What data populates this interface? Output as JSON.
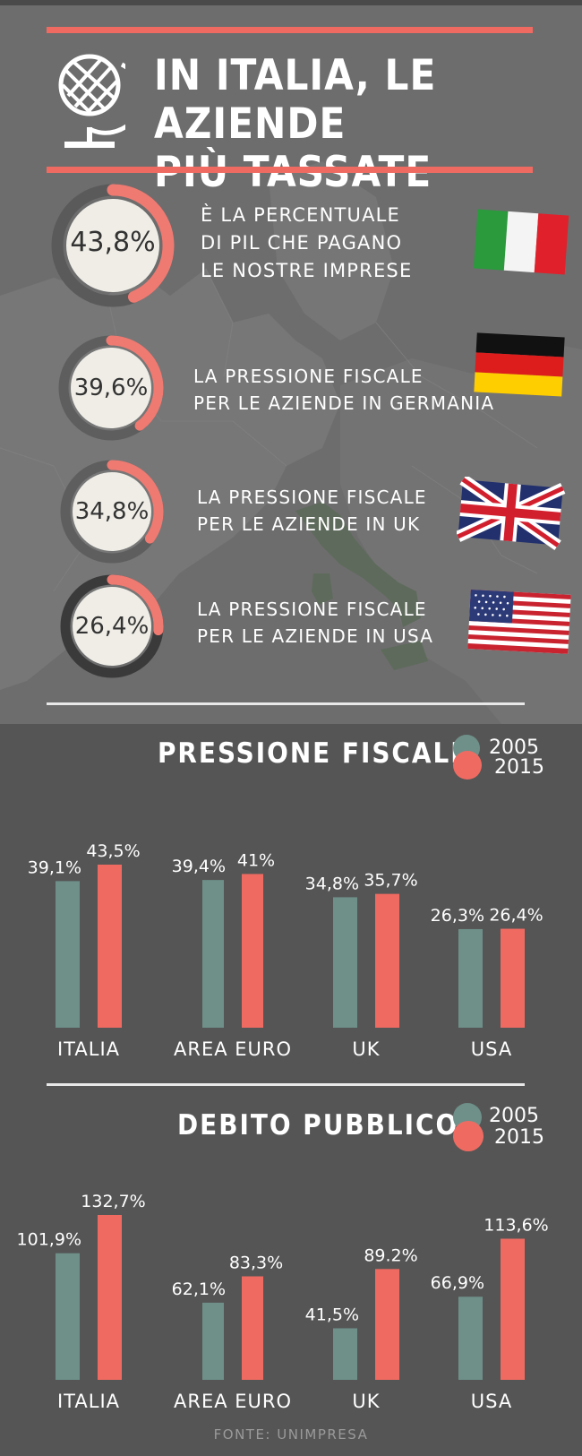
{
  "header": {
    "title_line1": "IN ITALIA, LE AZIENDE",
    "title_line2": "PIÙ TASSATE",
    "icon": "globe-icon"
  },
  "stats": [
    {
      "percent_text": "43,8%",
      "value": 43.8,
      "line1": "È LA PERCENTUALE",
      "line2": "DI PIL CHE PAGANO",
      "line3": "LE NOSTRE IMPRESE",
      "flag": "italy-flag"
    },
    {
      "percent_text": "39,6%",
      "value": 39.6,
      "line1": "LA PRESSIONE FISCALE",
      "line2": "PER LE AZIENDE IN GERMANIA",
      "flag": "germany-flag"
    },
    {
      "percent_text": "34,8%",
      "value": 34.8,
      "line1": "LA PRESSIONE FISCALE",
      "line2": "PER LE AZIENDE IN UK",
      "flag": "uk-flag"
    },
    {
      "percent_text": "26,4%",
      "value": 26.4,
      "line1": "LA PRESSIONE FISCALE",
      "line2": "PER LE AZIENDE IN USA",
      "flag": "usa-flag"
    }
  ],
  "colors": {
    "series_2005": "#6e9089",
    "series_2015": "#ef6b62",
    "accent": "#ef6b62",
    "background": "#555555"
  },
  "chart_data": [
    {
      "type": "bar",
      "title": "PRESSIONE FISCALE",
      "categories": [
        "ITALIA",
        "AREA EURO",
        "UK",
        "USA"
      ],
      "series": [
        {
          "name": "2005",
          "values": [
            39.1,
            39.4,
            34.8,
            26.3
          ],
          "labels": [
            "39,1%",
            "39,4%",
            "34,8%",
            "26,3%"
          ]
        },
        {
          "name": "2015",
          "values": [
            43.5,
            41,
            35.7,
            26.4
          ],
          "labels": [
            "43,5%",
            "41%",
            "35,7%",
            "26,4%"
          ]
        }
      ],
      "legend": "top-right",
      "grid": false
    },
    {
      "type": "bar",
      "title": "DEBITO PUBBLICO",
      "categories": [
        "ITALIA",
        "AREA EURO",
        "UK",
        "USA"
      ],
      "series": [
        {
          "name": "2005",
          "values": [
            101.9,
            62.1,
            41.5,
            66.9
          ],
          "labels": [
            "101,9%",
            "62,1%",
            "41,5%",
            "66,9%"
          ]
        },
        {
          "name": "2015",
          "values": [
            132.7,
            83.3,
            89.2,
            113.6
          ],
          "labels": [
            "132,7%",
            "83,3%",
            "89.2%",
            "113,6%"
          ]
        }
      ],
      "legend": "top-right",
      "grid": false
    }
  ],
  "footer": {
    "source": "FONTE: UNIMPRESA"
  }
}
